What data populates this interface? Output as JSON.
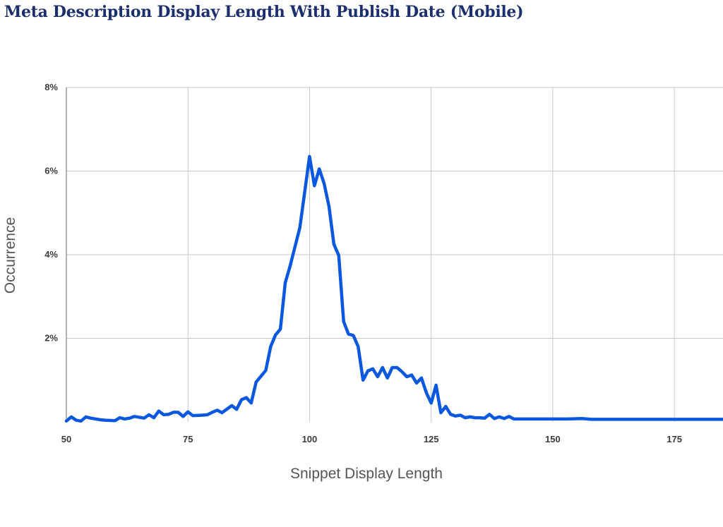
{
  "chart_data": {
    "type": "line",
    "title": "Meta Description Display Length With Publish Date (Mobile)",
    "xlabel": "Snippet Display Length",
    "ylabel": "Occurrence",
    "xlim": [
      50,
      185
    ],
    "ylim": [
      0,
      8
    ],
    "xticks": [
      {
        "value": 50,
        "label": "50"
      },
      {
        "value": 75,
        "label": "75"
      },
      {
        "value": 100,
        "label": "100"
      },
      {
        "value": 125,
        "label": "125"
      },
      {
        "value": 150,
        "label": "150"
      },
      {
        "value": 175,
        "label": "175"
      }
    ],
    "yticks": [
      {
        "value": 2,
        "label": "2%"
      },
      {
        "value": 4,
        "label": "4%"
      },
      {
        "value": 6,
        "label": "6%"
      },
      {
        "value": 8,
        "label": "8%"
      }
    ],
    "grid": true,
    "series": [
      {
        "color": "#0a57e0",
        "points": [
          [
            50,
            0.02
          ],
          [
            51,
            0.12
          ],
          [
            52,
            0.04
          ],
          [
            53,
            0.02
          ],
          [
            54,
            0.12
          ],
          [
            55,
            0.09
          ],
          [
            57,
            0.05
          ],
          [
            58,
            0.04
          ],
          [
            60,
            0.03
          ],
          [
            61,
            0.1
          ],
          [
            62,
            0.07
          ],
          [
            63,
            0.09
          ],
          [
            64,
            0.13
          ],
          [
            66,
            0.09
          ],
          [
            67,
            0.17
          ],
          [
            68,
            0.1
          ],
          [
            69,
            0.26
          ],
          [
            70,
            0.17
          ],
          [
            71,
            0.18
          ],
          [
            72,
            0.23
          ],
          [
            73,
            0.23
          ],
          [
            74,
            0.13
          ],
          [
            75,
            0.24
          ],
          [
            76,
            0.15
          ],
          [
            78,
            0.16
          ],
          [
            79,
            0.17
          ],
          [
            80,
            0.23
          ],
          [
            81,
            0.28
          ],
          [
            82,
            0.22
          ],
          [
            84,
            0.39
          ],
          [
            85,
            0.3
          ],
          [
            86,
            0.53
          ],
          [
            87,
            0.58
          ],
          [
            88,
            0.45
          ],
          [
            89,
            0.95
          ],
          [
            91,
            1.23
          ],
          [
            92,
            1.8
          ],
          [
            93,
            2.08
          ],
          [
            94,
            2.22
          ],
          [
            95,
            3.33
          ],
          [
            96,
            3.73
          ],
          [
            98,
            4.65
          ],
          [
            100,
            6.35
          ],
          [
            101,
            5.65
          ],
          [
            102,
            6.05
          ],
          [
            103,
            5.7
          ],
          [
            104,
            5.15
          ],
          [
            105,
            4.25
          ],
          [
            106,
            3.98
          ],
          [
            107,
            2.4
          ],
          [
            108,
            2.1
          ],
          [
            109,
            2.07
          ],
          [
            110,
            1.8
          ],
          [
            111,
            1.0
          ],
          [
            112,
            1.22
          ],
          [
            113,
            1.27
          ],
          [
            114,
            1.08
          ],
          [
            115,
            1.3
          ],
          [
            116,
            1.05
          ],
          [
            117,
            1.3
          ],
          [
            118,
            1.3
          ],
          [
            119,
            1.2
          ],
          [
            120,
            1.08
          ],
          [
            121,
            1.12
          ],
          [
            122,
            0.93
          ],
          [
            123,
            1.05
          ],
          [
            124,
            0.7
          ],
          [
            125,
            0.45
          ],
          [
            126,
            0.88
          ],
          [
            127,
            0.22
          ],
          [
            128,
            0.37
          ],
          [
            129,
            0.18
          ],
          [
            130,
            0.14
          ],
          [
            131,
            0.16
          ],
          [
            132,
            0.1
          ],
          [
            133,
            0.12
          ],
          [
            134,
            0.1
          ],
          [
            135,
            0.1
          ],
          [
            136,
            0.09
          ],
          [
            137,
            0.18
          ],
          [
            138,
            0.08
          ],
          [
            139,
            0.12
          ],
          [
            140,
            0.08
          ],
          [
            141,
            0.13
          ],
          [
            142,
            0.07
          ],
          [
            150,
            0.07
          ],
          [
            153,
            0.07
          ],
          [
            156,
            0.08
          ],
          [
            158,
            0.06
          ],
          [
            185,
            0.06
          ]
        ]
      }
    ]
  }
}
